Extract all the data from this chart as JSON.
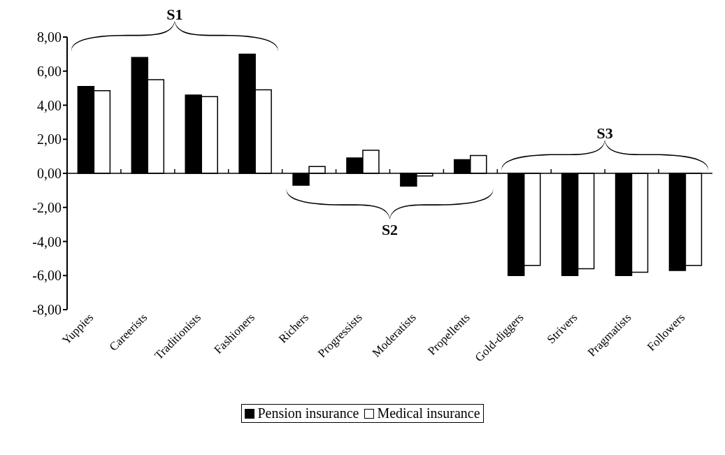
{
  "chart_data": {
    "type": "bar",
    "categories": [
      "Yuppies",
      "Careerists",
      "Traditionists",
      "Fashioners",
      "Richers",
      "Progressists",
      "Moderatists",
      "Propellents",
      "Gold-diggers",
      "Strivers",
      "Pragmatists",
      "Followers"
    ],
    "series": [
      {
        "name": "Pension insurance",
        "color": "#000000",
        "values": [
          5.1,
          6.8,
          4.6,
          7.0,
          -0.7,
          0.9,
          -0.75,
          0.8,
          -6.0,
          -6.0,
          -6.0,
          -5.7
        ]
      },
      {
        "name": "Medical insurance",
        "color": "#ffffff",
        "values": [
          4.85,
          5.5,
          4.5,
          4.9,
          0.4,
          1.35,
          -0.15,
          1.05,
          -5.4,
          -5.6,
          -5.8,
          -5.4
        ]
      }
    ],
    "ylim": [
      -8,
      8
    ],
    "yticks": [
      {
        "value": -8,
        "label": "-8,00"
      },
      {
        "value": -6,
        "label": "-6,00"
      },
      {
        "value": -4,
        "label": "-4,00"
      },
      {
        "value": -2,
        "label": "-2,00"
      },
      {
        "value": 0,
        "label": "0,00"
      },
      {
        "value": 2,
        "label": "2,00"
      },
      {
        "value": 4,
        "label": "4,00"
      },
      {
        "value": 6,
        "label": "6,00"
      },
      {
        "value": 8,
        "label": "8,00"
      }
    ],
    "annotations": [
      "S1",
      "S2",
      "S3"
    ],
    "legend": "bottom"
  }
}
